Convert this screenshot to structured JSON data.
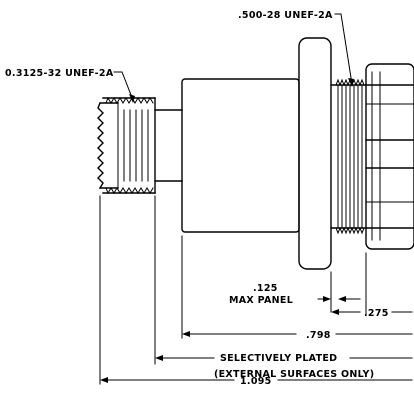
{
  "callouts": {
    "thread_small": "0.3125-32 UNEF-2A",
    "thread_large": ".500-28 UNEF-2A"
  },
  "dimensions": {
    "panel_value": ".125",
    "panel_label": "MAX PANEL",
    "nut_width": ".275",
    "body_length": ".798",
    "plated_line1": "SELECTIVELY PLATED",
    "plated_line2": "(EXTERNAL SURFACES ONLY)",
    "overall_length": "1.095"
  }
}
